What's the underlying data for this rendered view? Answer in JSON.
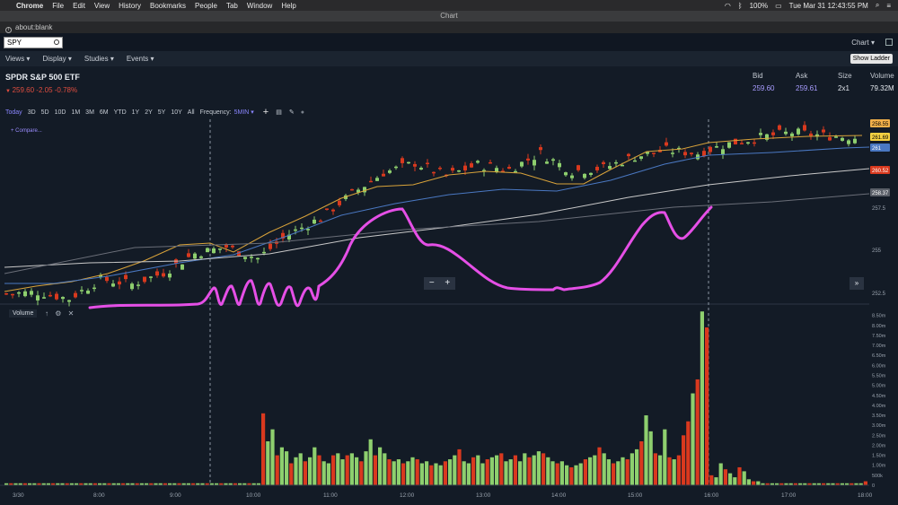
{
  "menubar": {
    "app": "Chrome",
    "items": [
      "File",
      "Edit",
      "View",
      "History",
      "Bookmarks",
      "People",
      "Tab",
      "Window",
      "Help"
    ],
    "battery": "100%",
    "clock": "Tue Mar 31  12:43:55 PM"
  },
  "window": {
    "title": "Chart"
  },
  "address": {
    "url": "about:blank"
  },
  "toolbar": {
    "symbol": "SPY",
    "chart_menu": "Chart ▾",
    "nav": [
      "Views ▾",
      "Display ▾",
      "Studies ▾",
      "Events ▾"
    ],
    "show_ladder": "Show Ladder"
  },
  "quote": {
    "name": "SPDR S&P 500 ETF",
    "price_line": "259.60  -2.05   -0.78%",
    "bid_label": "Bid",
    "bid": "259.60",
    "ask_label": "Ask",
    "ask": "259.61",
    "size_label": "Size",
    "size": "2x1",
    "volume_label": "Volume",
    "volume": "79.32M"
  },
  "ranges": {
    "items": [
      "Today",
      "3D",
      "5D",
      "10D",
      "1M",
      "3M",
      "6M",
      "YTD",
      "1Y",
      "2Y",
      "5Y",
      "10Y",
      "All"
    ],
    "frequency_label": "Frequency:",
    "frequency_value": "5MIN ▾"
  },
  "chart": {
    "compare": "+ Compare...",
    "volume_panel": "Volume",
    "zoom_out": "−",
    "zoom_in": "+",
    "scroll_end": "»"
  },
  "colors": {
    "up": "#8ecf6e",
    "down": "#d9391e",
    "bg": "#131b26",
    "accent": "#8a86ff",
    "drawing": "#e54fe6"
  },
  "chart_data": [
    {
      "type": "candlestick",
      "price_axis": [
        "258.55",
        "261.69",
        "261",
        "260.52",
        "258.37",
        "257.5",
        "255",
        "252.5"
      ],
      "x_ticks": [
        "3/30",
        "8:00",
        "9:00",
        "10:00",
        "11:00",
        "12:00",
        "13:00",
        "14:00",
        "15:00",
        "16:00",
        "17:00",
        "18:00"
      ],
      "close_path": [
        [
          0,
          252.3
        ],
        [
          5,
          252.4
        ],
        [
          10,
          252.0
        ],
        [
          15,
          253.2
        ],
        [
          20,
          252.9
        ],
        [
          25,
          253.6
        ],
        [
          30,
          254.8
        ],
        [
          35,
          255.2
        ],
        [
          40,
          254.5
        ],
        [
          45,
          256.0
        ],
        [
          50,
          257.0
        ],
        [
          55,
          258.5
        ],
        [
          60,
          259.8
        ],
        [
          65,
          260.4
        ],
        [
          70,
          259.6
        ],
        [
          75,
          260.3
        ],
        [
          80,
          260.0
        ],
        [
          85,
          261.0
        ],
        [
          90,
          259.9
        ],
        [
          95,
          260.1
        ],
        [
          100,
          260.8
        ],
        [
          105,
          261.2
        ],
        [
          110,
          261.0
        ],
        [
          115,
          261.6
        ],
        [
          120,
          262.0
        ],
        [
          125,
          262.3
        ],
        [
          130,
          262.1
        ],
        [
          135,
          262.0
        ]
      ]
    },
    {
      "type": "bar",
      "name": "Volume",
      "y_ticks": [
        "8.50m",
        "8.00m",
        "7.50m",
        "7.00m",
        "6.50m",
        "6.00m",
        "5.50m",
        "5.00m",
        "4.50m",
        "4.00m",
        "3.50m",
        "3.00m",
        "2.50m",
        "2.00m",
        "1.50m",
        "1.00m",
        "500k",
        "0"
      ],
      "ylim": [
        0,
        8.8
      ],
      "values": [
        0.1,
        0.1,
        0.1,
        0.1,
        0.1,
        0.1,
        0.1,
        0.1,
        0.1,
        0.1,
        0.1,
        0.1,
        0.1,
        0.1,
        0.1,
        0.1,
        0.1,
        0.1,
        0.1,
        0.1,
        0.1,
        0.1,
        0.1,
        0.1,
        0.1,
        0.1,
        0.1,
        0.1,
        0.1,
        0.1,
        0.1,
        0.1,
        0.1,
        0.1,
        0.1,
        0.1,
        0.1,
        0.1,
        0.1,
        0.1,
        0.1,
        0.1,
        0.1,
        0.1,
        0.1,
        0.1,
        0.1,
        0.1,
        0.1,
        0.1,
        0.1,
        0.1,
        0.1,
        0.1,
        0.1,
        3.6,
        2.2,
        2.8,
        1.5,
        1.9,
        1.7,
        1.1,
        1.4,
        1.6,
        1.2,
        1.4,
        1.9,
        1.5,
        1.2,
        1.1,
        1.5,
        1.6,
        1.3,
        1.5,
        1.6,
        1.4,
        1.2,
        1.7,
        2.3,
        1.5,
        1.9,
        1.6,
        1.3,
        1.2,
        1.3,
        1.1,
        1.2,
        1.4,
        1.3,
        1.1,
        1.2,
        1.0,
        1.1,
        1.0,
        1.2,
        1.3,
        1.5,
        1.8,
        1.2,
        1.1,
        1.4,
        1.5,
        1.1,
        1.3,
        1.4,
        1.5,
        1.6,
        1.2,
        1.3,
        1.5,
        1.2,
        1.6,
        1.4,
        1.5,
        1.7,
        1.6,
        1.4,
        1.2,
        1.1,
        1.2,
        1.0,
        0.9,
        1.0,
        1.1,
        1.3,
        1.4,
        1.5,
        1.9,
        1.6,
        1.3,
        1.1,
        1.2,
        1.4,
        1.3,
        1.6,
        1.8,
        2.2,
        3.5,
        2.7,
        1.6,
        1.5,
        2.8,
        1.4,
        1.3,
        1.5,
        2.5,
        3.2,
        4.6,
        5.3,
        8.7,
        7.9,
        0.5,
        0.4,
        1.1,
        0.8,
        0.6,
        0.4,
        0.9,
        0.7,
        0.3,
        0.2,
        0.2,
        0.1,
        0.1,
        0.1,
        0.1,
        0.1,
        0.1,
        0.1,
        0.1,
        0.1,
        0.1,
        0.1,
        0.1,
        0.1,
        0.1,
        0.1,
        0.1,
        0.1,
        0.1,
        0.1,
        0.1,
        0.1,
        0.1,
        0.2
      ]
    }
  ]
}
